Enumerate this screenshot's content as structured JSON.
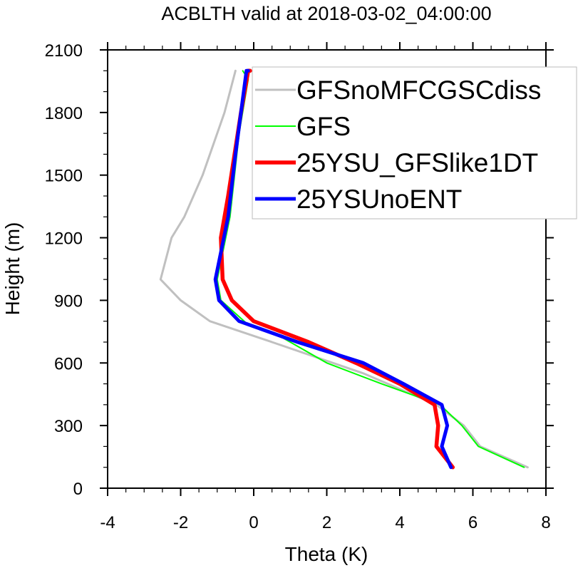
{
  "chart_data": {
    "type": "line",
    "title": "ACBLTH valid at 2018-03-02_04:00:00",
    "xlabel": "Theta (K)",
    "ylabel": "Height (m)",
    "xlim": [
      -4,
      8
    ],
    "ylim": [
      0,
      2100
    ],
    "xticks": [
      -4,
      -2,
      0,
      2,
      4,
      6,
      8
    ],
    "yticks": [
      0,
      300,
      600,
      900,
      1200,
      1500,
      1800,
      2100
    ],
    "grid": false,
    "legend_position": "top-right",
    "series": [
      {
        "name": "GFSnoMFCGSCdiss",
        "color": "#c0c0c0",
        "points": [
          [
            7.5,
            100
          ],
          [
            6.2,
            200
          ],
          [
            5.75,
            300
          ],
          [
            5.0,
            400
          ],
          [
            3.0,
            550
          ],
          [
            0.5,
            700
          ],
          [
            -1.2,
            800
          ],
          [
            -2.0,
            900
          ],
          [
            -2.55,
            1000
          ],
          [
            -2.25,
            1200
          ],
          [
            -1.9,
            1300
          ],
          [
            -1.4,
            1500
          ],
          [
            -0.8,
            1800
          ],
          [
            -0.5,
            2000
          ]
        ]
      },
      {
        "name": "GFS",
        "color": "#00ff00",
        "points": [
          [
            7.4,
            100
          ],
          [
            6.15,
            200
          ],
          [
            5.7,
            300
          ],
          [
            5.1,
            400
          ],
          [
            3.5,
            500
          ],
          [
            2.0,
            600
          ],
          [
            0.7,
            730
          ],
          [
            -0.2,
            790
          ],
          [
            -0.9,
            900
          ],
          [
            -1.0,
            1000
          ],
          [
            -0.65,
            1300
          ],
          [
            -0.4,
            1700
          ],
          [
            -0.15,
            1960
          ],
          [
            -0.3,
            2000
          ]
        ]
      },
      {
        "name": "25YSU_GFSlike1DT",
        "color": "#ff0000",
        "points": [
          [
            5.45,
            100
          ],
          [
            5.0,
            200
          ],
          [
            5.05,
            300
          ],
          [
            4.95,
            400
          ],
          [
            4.0,
            500
          ],
          [
            2.8,
            600
          ],
          [
            1.5,
            700
          ],
          [
            0,
            800
          ],
          [
            -0.6,
            900
          ],
          [
            -0.85,
            1000
          ],
          [
            -0.9,
            1200
          ],
          [
            -0.7,
            1400
          ],
          [
            -0.35,
            1800
          ],
          [
            -0.15,
            2000
          ],
          [
            -0.1,
            2000
          ]
        ]
      },
      {
        "name": "25YSUnoENT",
        "color": "#0000ff",
        "points": [
          [
            5.4,
            100
          ],
          [
            5.15,
            200
          ],
          [
            5.3,
            300
          ],
          [
            5.15,
            400
          ],
          [
            4.1,
            500
          ],
          [
            3.0,
            600
          ],
          [
            1.2,
            700
          ],
          [
            -0.4,
            800
          ],
          [
            -0.95,
            900
          ],
          [
            -1.05,
            1000
          ],
          [
            -0.7,
            1300
          ],
          [
            -0.5,
            1600
          ],
          [
            -0.2,
            2000
          ],
          [
            -0.15,
            2000
          ]
        ]
      }
    ]
  }
}
